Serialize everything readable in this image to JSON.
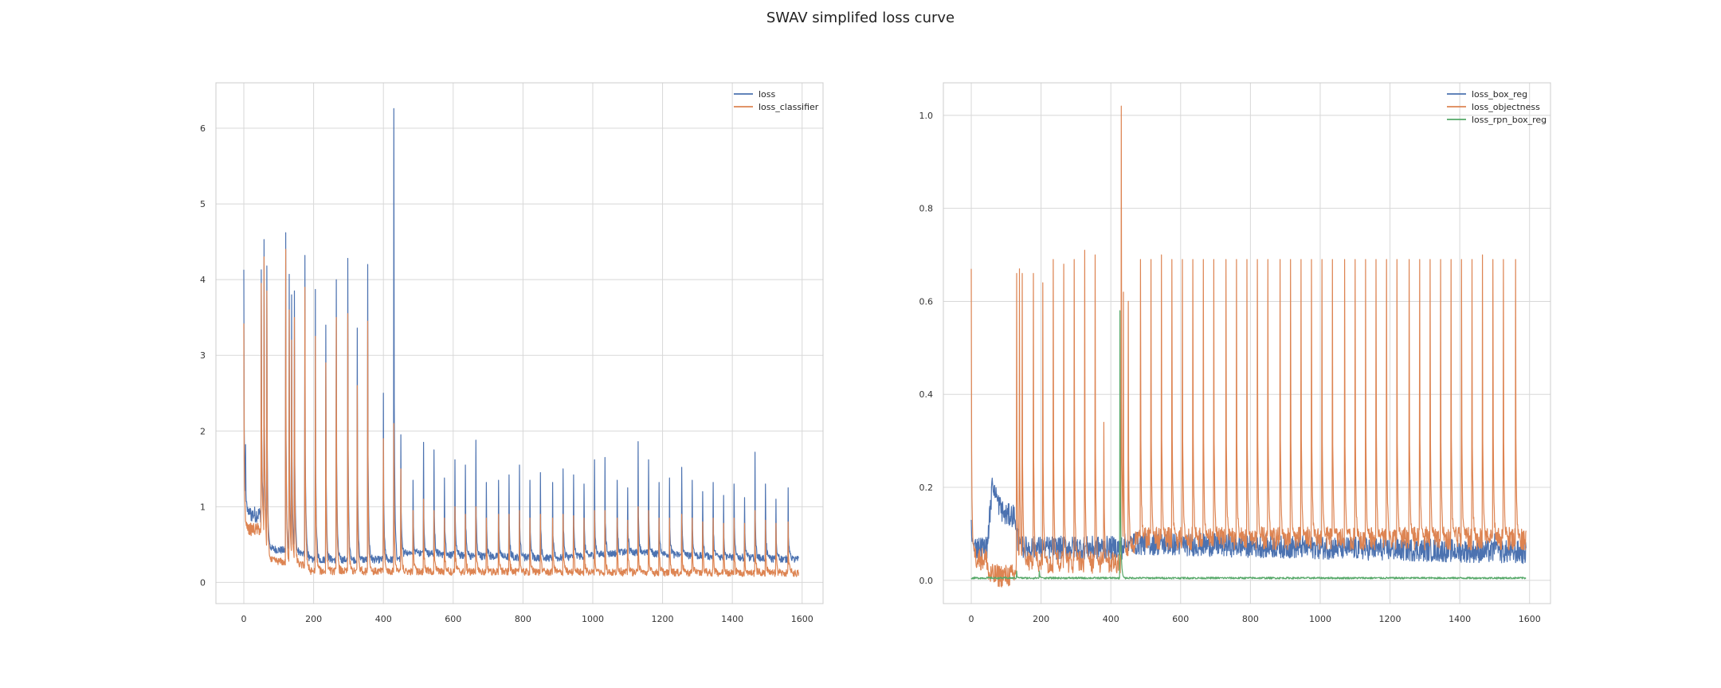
{
  "title": "SWAV simplifed loss curve",
  "chart_data": [
    {
      "type": "line",
      "legend_position": "top-right",
      "grid": true,
      "xlim": [
        -80,
        1660
      ],
      "ylim": [
        -0.28,
        6.6
      ],
      "x_ticks": [
        0,
        200,
        400,
        600,
        800,
        1000,
        1200,
        1400,
        1600
      ],
      "y_ticks": [
        0,
        1,
        2,
        3,
        4,
        5,
        6
      ],
      "x_tick_labels": [
        "0",
        "200",
        "400",
        "600",
        "800",
        "1000",
        "1200",
        "1400",
        "1600"
      ],
      "y_tick_labels": [
        "0",
        "1",
        "2",
        "3",
        "4",
        "5",
        "6"
      ],
      "x_max": 1590,
      "series": [
        {
          "name": "loss",
          "color": "#4c72b0",
          "baseline": [
            [
              0,
              0.9
            ],
            [
              55,
              0.9
            ],
            [
              70,
              0.45
            ],
            [
              180,
              0.38
            ],
            [
              190,
              0.3
            ],
            [
              450,
              0.3
            ],
            [
              460,
              0.4
            ],
            [
              650,
              0.35
            ],
            [
              900,
              0.32
            ],
            [
              1100,
              0.4
            ],
            [
              1300,
              0.35
            ],
            [
              1590,
              0.3
            ]
          ],
          "peaks": [
            [
              0,
              4.13
            ],
            [
              5,
              1.82
            ],
            [
              50,
              4.13
            ],
            [
              58,
              4.53
            ],
            [
              66,
              4.18
            ],
            [
              120,
              4.62
            ],
            [
              130,
              4.07
            ],
            [
              137,
              3.8
            ],
            [
              145,
              3.85
            ],
            [
              175,
              4.32
            ],
            [
              205,
              3.87
            ],
            [
              235,
              3.4
            ],
            [
              265,
              4.0
            ],
            [
              298,
              4.28
            ],
            [
              325,
              3.36
            ],
            [
              355,
              4.2
            ],
            [
              400,
              2.5
            ],
            [
              430,
              6.26
            ],
            [
              450,
              1.95
            ],
            [
              485,
              1.35
            ],
            [
              515,
              1.85
            ],
            [
              545,
              1.75
            ],
            [
              575,
              1.38
            ],
            [
              605,
              1.62
            ],
            [
              635,
              1.55
            ],
            [
              665,
              1.88
            ],
            [
              695,
              1.32
            ],
            [
              730,
              1.35
            ],
            [
              760,
              1.42
            ],
            [
              790,
              1.55
            ],
            [
              820,
              1.35
            ],
            [
              850,
              1.45
            ],
            [
              885,
              1.32
            ],
            [
              915,
              1.5
            ],
            [
              945,
              1.42
            ],
            [
              975,
              1.3
            ],
            [
              1005,
              1.62
            ],
            [
              1035,
              1.65
            ],
            [
              1070,
              1.35
            ],
            [
              1100,
              1.25
            ],
            [
              1130,
              1.86
            ],
            [
              1160,
              1.62
            ],
            [
              1190,
              1.32
            ],
            [
              1220,
              1.38
            ],
            [
              1255,
              1.52
            ],
            [
              1285,
              1.35
            ],
            [
              1315,
              1.2
            ],
            [
              1345,
              1.32
            ],
            [
              1375,
              1.15
            ],
            [
              1405,
              1.3
            ],
            [
              1435,
              1.12
            ],
            [
              1465,
              1.72
            ],
            [
              1495,
              1.3
            ],
            [
              1525,
              1.1
            ],
            [
              1560,
              1.25
            ]
          ]
        },
        {
          "name": "loss_classifier",
          "color": "#dd8452",
          "baseline": [
            [
              0,
              0.7
            ],
            [
              55,
              0.7
            ],
            [
              70,
              0.3
            ],
            [
              180,
              0.22
            ],
            [
              190,
              0.15
            ],
            [
              1590,
              0.12
            ]
          ],
          "peaks": [
            [
              0,
              3.42
            ],
            [
              50,
              3.95
            ],
            [
              58,
              4.3
            ],
            [
              66,
              3.85
            ],
            [
              120,
              4.4
            ],
            [
              130,
              3.6
            ],
            [
              137,
              3.2
            ],
            [
              145,
              3.5
            ],
            [
              175,
              3.9
            ],
            [
              205,
              3.25
            ],
            [
              235,
              2.9
            ],
            [
              265,
              3.5
            ],
            [
              298,
              3.55
            ],
            [
              325,
              2.6
            ],
            [
              355,
              3.45
            ],
            [
              400,
              1.9
            ],
            [
              430,
              2.1
            ],
            [
              450,
              1.5
            ],
            [
              485,
              0.95
            ],
            [
              515,
              1.1
            ],
            [
              545,
              0.95
            ],
            [
              575,
              0.85
            ],
            [
              605,
              1.0
            ],
            [
              635,
              0.9
            ],
            [
              665,
              1.0
            ],
            [
              695,
              0.85
            ],
            [
              730,
              0.9
            ],
            [
              760,
              0.9
            ],
            [
              790,
              0.95
            ],
            [
              820,
              0.85
            ],
            [
              850,
              0.9
            ],
            [
              885,
              0.85
            ],
            [
              915,
              0.9
            ],
            [
              945,
              0.88
            ],
            [
              975,
              0.85
            ],
            [
              1005,
              0.95
            ],
            [
              1035,
              0.95
            ],
            [
              1070,
              0.85
            ],
            [
              1100,
              0.82
            ],
            [
              1130,
              1.0
            ],
            [
              1160,
              0.95
            ],
            [
              1190,
              0.85
            ],
            [
              1220,
              0.85
            ],
            [
              1255,
              0.9
            ],
            [
              1285,
              0.85
            ],
            [
              1315,
              0.8
            ],
            [
              1345,
              0.85
            ],
            [
              1375,
              0.78
            ],
            [
              1405,
              0.85
            ],
            [
              1435,
              0.78
            ],
            [
              1465,
              0.95
            ],
            [
              1495,
              0.82
            ],
            [
              1525,
              0.78
            ],
            [
              1560,
              0.8
            ]
          ]
        }
      ]
    },
    {
      "type": "line",
      "legend_position": "top-right",
      "grid": true,
      "xlim": [
        -80,
        1660
      ],
      "ylim": [
        -0.05,
        1.07
      ],
      "x_ticks": [
        0,
        200,
        400,
        600,
        800,
        1000,
        1200,
        1400,
        1600
      ],
      "y_ticks": [
        0.0,
        0.2,
        0.4,
        0.6,
        0.8,
        1.0
      ],
      "x_tick_labels": [
        "0",
        "200",
        "400",
        "600",
        "800",
        "1000",
        "1200",
        "1400",
        "1600"
      ],
      "y_tick_labels": [
        "0.0",
        "0.2",
        "0.4",
        "0.6",
        "0.8",
        "1.0"
      ],
      "x_max": 1590,
      "series": [
        {
          "name": "loss_box_reg",
          "color": "#4c72b0",
          "baseline": [
            [
              0,
              0.07
            ],
            [
              45,
              0.07
            ],
            [
              60,
              0.2
            ],
            [
              75,
              0.17
            ],
            [
              95,
              0.14
            ],
            [
              125,
              0.14
            ],
            [
              135,
              0.07
            ],
            [
              440,
              0.07
            ],
            [
              460,
              0.08
            ],
            [
              1590,
              0.06
            ]
          ],
          "peaks": [
            [
              0,
              0.13
            ],
            [
              60,
              0.22
            ],
            [
              135,
              0.11
            ],
            [
              440,
              0.1
            ],
            [
              1500,
              0.1
            ]
          ]
        },
        {
          "name": "loss_objectness",
          "color": "#dd8452",
          "baseline": [
            [
              0,
              0.05
            ],
            [
              45,
              0.045
            ],
            [
              50,
              0.01
            ],
            [
              125,
              0.01
            ],
            [
              130,
              0.04
            ],
            [
              430,
              0.04
            ],
            [
              480,
              0.09
            ],
            [
              1590,
              0.09
            ]
          ],
          "peaks": [
            [
              0,
              0.67
            ],
            [
              130,
              0.66
            ],
            [
              138,
              0.67
            ],
            [
              146,
              0.66
            ],
            [
              178,
              0.66
            ],
            [
              205,
              0.64
            ],
            [
              235,
              0.69
            ],
            [
              265,
              0.68
            ],
            [
              295,
              0.69
            ],
            [
              325,
              0.71
            ],
            [
              355,
              0.7
            ],
            [
              380,
              0.34
            ],
            [
              430,
              1.02
            ],
            [
              436,
              0.62
            ],
            [
              450,
              0.6
            ],
            [
              485,
              0.69
            ],
            [
              515,
              0.69
            ],
            [
              545,
              0.7
            ],
            [
              575,
              0.69
            ],
            [
              605,
              0.69
            ],
            [
              635,
              0.69
            ],
            [
              665,
              0.69
            ],
            [
              695,
              0.69
            ],
            [
              730,
              0.69
            ],
            [
              760,
              0.69
            ],
            [
              790,
              0.69
            ],
            [
              820,
              0.69
            ],
            [
              850,
              0.69
            ],
            [
              885,
              0.69
            ],
            [
              915,
              0.69
            ],
            [
              945,
              0.69
            ],
            [
              975,
              0.69
            ],
            [
              1005,
              0.69
            ],
            [
              1035,
              0.69
            ],
            [
              1070,
              0.69
            ],
            [
              1100,
              0.69
            ],
            [
              1130,
              0.69
            ],
            [
              1160,
              0.69
            ],
            [
              1190,
              0.69
            ],
            [
              1220,
              0.69
            ],
            [
              1255,
              0.69
            ],
            [
              1285,
              0.69
            ],
            [
              1315,
              0.69
            ],
            [
              1345,
              0.69
            ],
            [
              1375,
              0.69
            ],
            [
              1405,
              0.69
            ],
            [
              1435,
              0.69
            ],
            [
              1465,
              0.7
            ],
            [
              1495,
              0.69
            ],
            [
              1525,
              0.69
            ],
            [
              1560,
              0.69
            ]
          ]
        },
        {
          "name": "loss_rpn_box_reg",
          "color": "#55a868",
          "baseline": [
            [
              0,
              0.005
            ],
            [
              1590,
              0.005
            ]
          ],
          "peaks": [
            [
              426,
              0.58
            ],
            [
              130,
              0.02
            ],
            [
              195,
              0.02
            ]
          ]
        }
      ]
    }
  ]
}
